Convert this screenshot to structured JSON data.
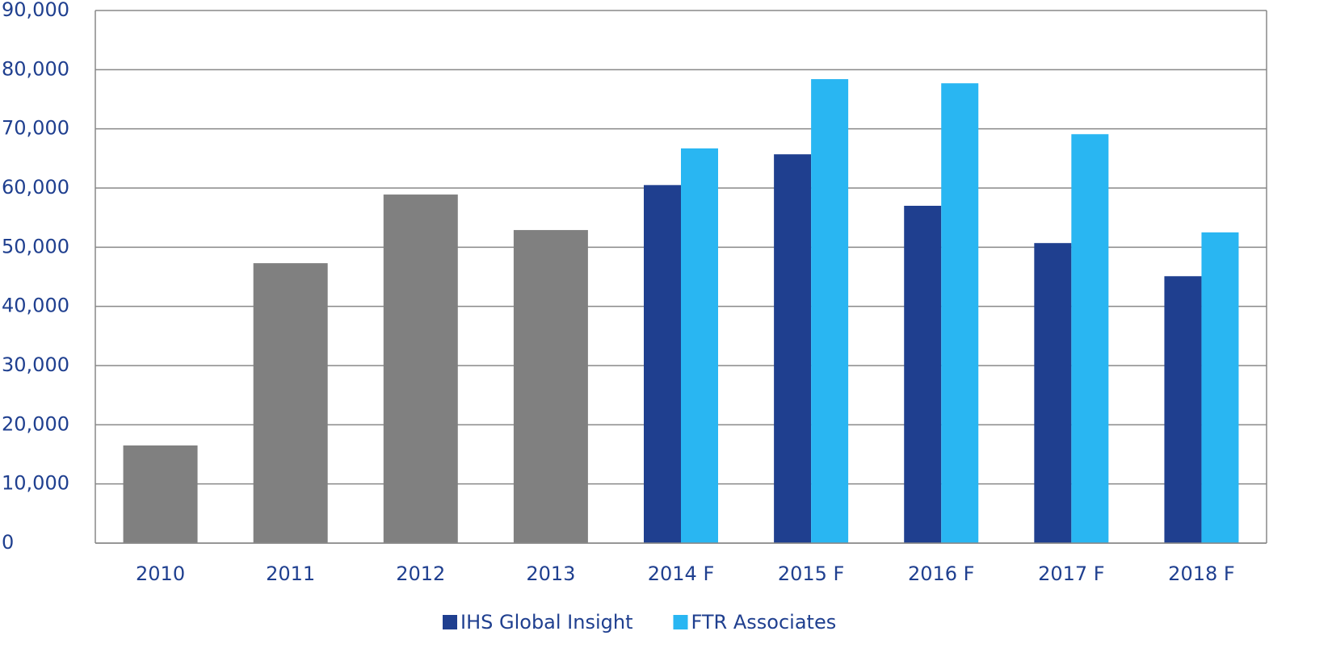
{
  "chart_data": {
    "type": "bar",
    "categories": [
      "2010",
      "2011",
      "2012",
      "2013",
      "2014 F",
      "2015 F",
      "2016 F",
      "2017 F",
      "2018 F"
    ],
    "series": [
      {
        "color": "#808080",
        "values": [
          16500,
          47300,
          58900,
          52900,
          null,
          null,
          null,
          null,
          null
        ]
      },
      {
        "name": "IHS Global Insight",
        "color": "#1f3f8f",
        "values": [
          null,
          null,
          null,
          null,
          60500,
          65700,
          57000,
          50700,
          45100
        ]
      },
      {
        "name": "FTR Associates",
        "color": "#29b6f2",
        "values": [
          null,
          null,
          null,
          null,
          66700,
          78400,
          77700,
          69100,
          52500
        ]
      }
    ],
    "ylim": [
      0,
      90000
    ],
    "yticks": [
      0,
      {
        "value": 10000,
        "label": "10,000"
      },
      {
        "value": 20000,
        "label": "20,000"
      },
      {
        "value": 30000,
        "label": "30,000"
      },
      {
        "value": 40000,
        "label": "40,000"
      },
      {
        "value": 50000,
        "label": "50,000"
      },
      {
        "value": 60000,
        "label": "60,000"
      },
      {
        "value": 70000,
        "label": "70,000"
      },
      {
        "value": 80000,
        "label": "80,000"
      },
      {
        "value": 90000,
        "label": "90,000"
      }
    ],
    "grid": true,
    "legend": "bottom"
  }
}
